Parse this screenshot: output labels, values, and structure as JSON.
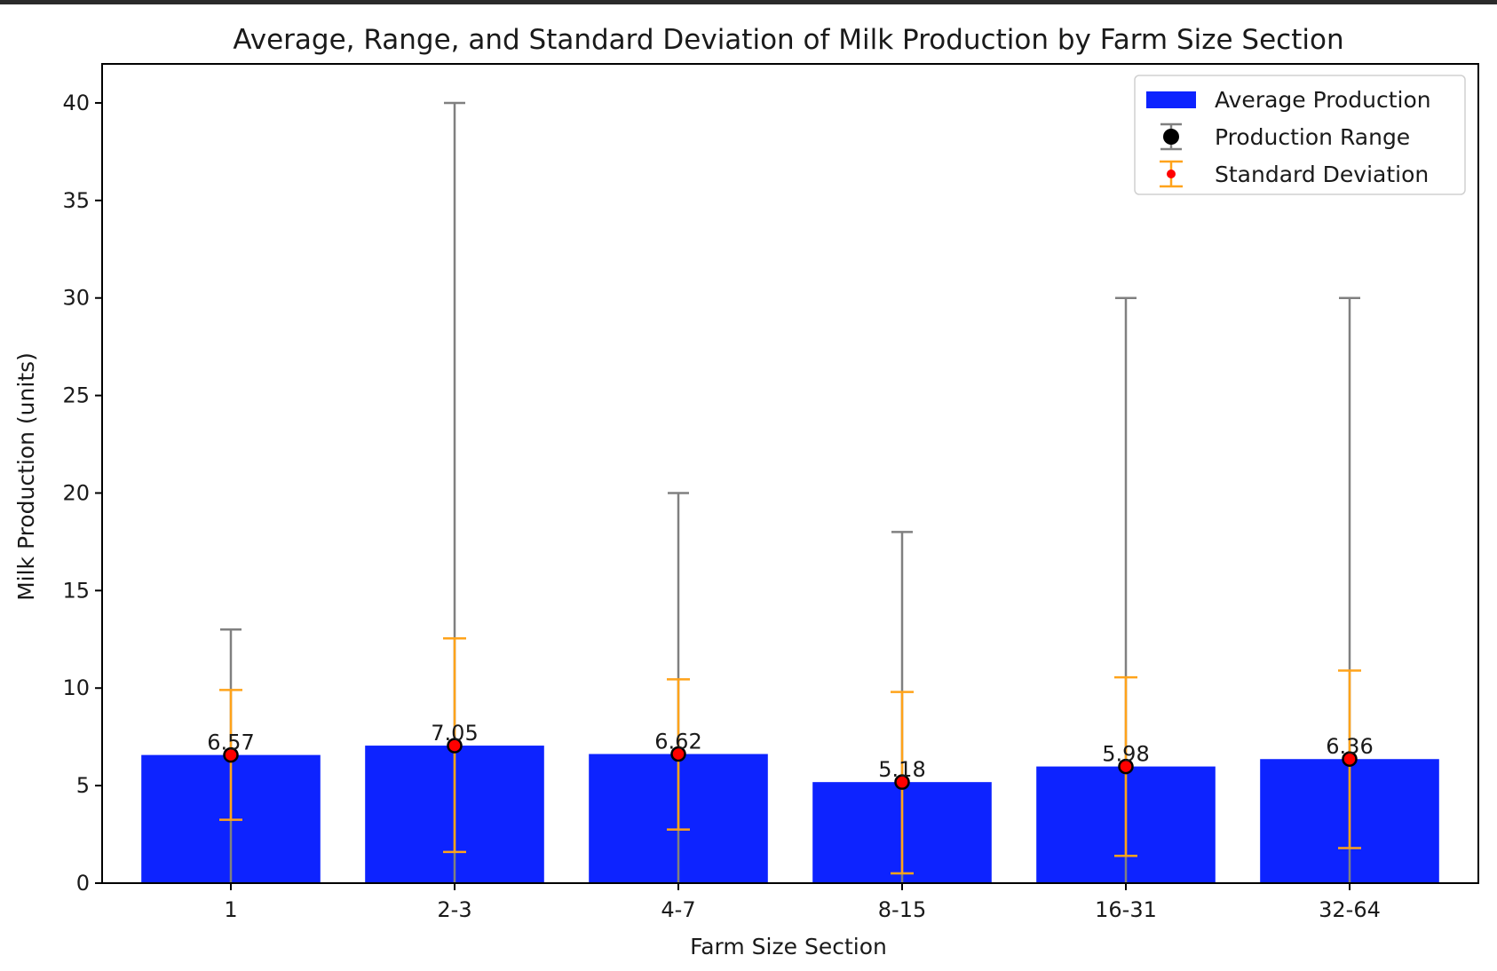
{
  "chart_data": {
    "type": "bar",
    "title": "Average, Range, and Standard Deviation of Milk Production by Farm Size Section",
    "xlabel": "Farm Size Section",
    "ylabel": "Milk Production (units)",
    "ylim": [
      0,
      42
    ],
    "yticks": [
      0,
      5,
      10,
      15,
      20,
      25,
      30,
      35,
      40
    ],
    "categories": [
      "1",
      "2-3",
      "4-7",
      "8-15",
      "16-31",
      "32-64"
    ],
    "series": [
      {
        "name": "Average Production",
        "values": [
          6.57,
          7.05,
          6.62,
          5.18,
          5.98,
          6.36
        ],
        "color": "#0d23ff"
      },
      {
        "name": "Production Range",
        "min": [
          0,
          0,
          0,
          0,
          0,
          0
        ],
        "max": [
          13,
          40,
          20,
          18,
          30,
          30
        ],
        "color": "#808080"
      },
      {
        "name": "Standard Deviation",
        "lower": [
          3.25,
          1.6,
          2.75,
          0.5,
          1.4,
          1.8
        ],
        "upper": [
          9.9,
          12.55,
          10.45,
          9.8,
          10.55,
          10.9
        ],
        "color": "#ffa31a"
      }
    ],
    "data_labels": [
      "6.57",
      "7.05",
      "6.62",
      "5.18",
      "5.98",
      "6.36"
    ],
    "legend": {
      "position": "top-right",
      "entries": [
        "Average Production",
        "Production Range",
        "Standard Deviation"
      ]
    },
    "grid": false,
    "marker_fill": "#ff0000"
  }
}
